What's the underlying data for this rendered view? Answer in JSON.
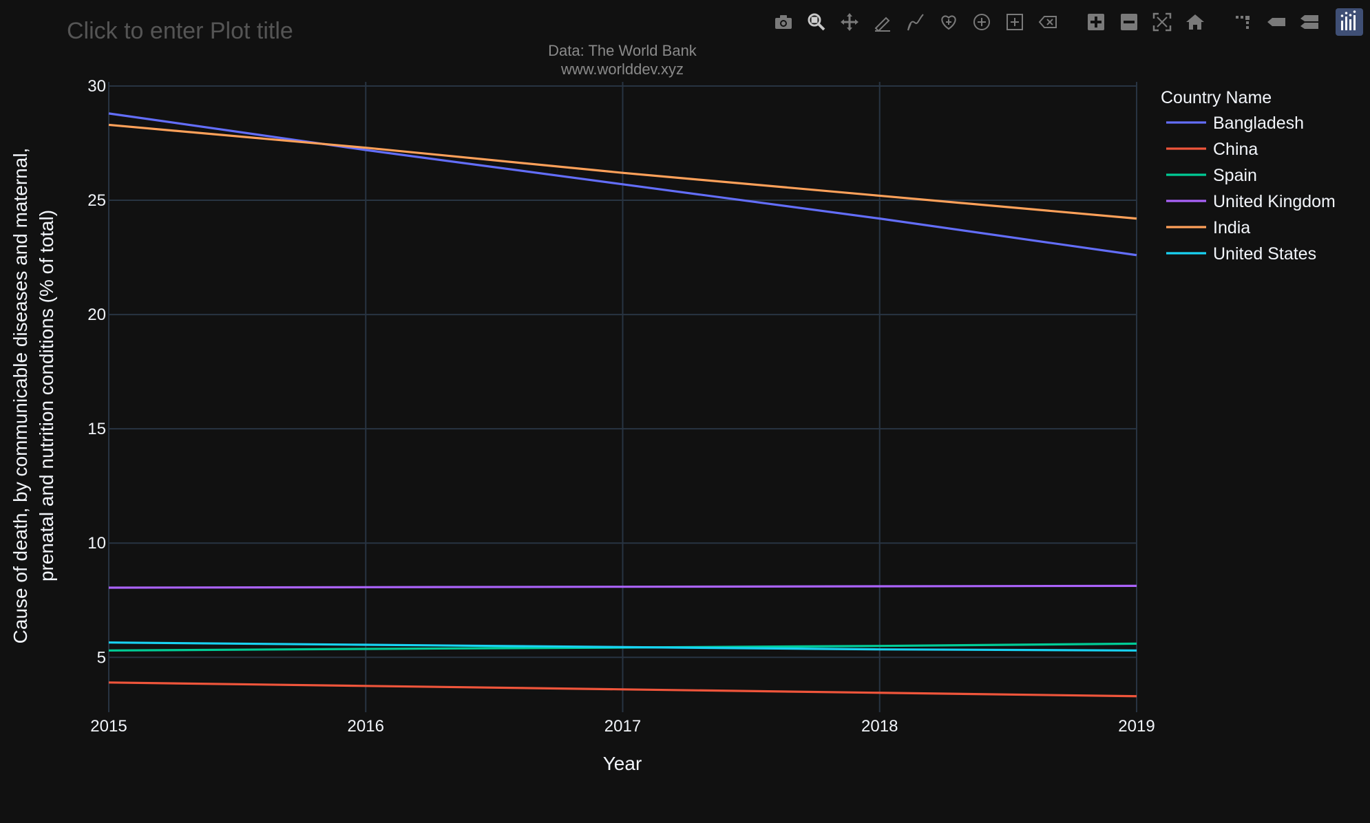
{
  "plot": {
    "title_placeholder": "Click to enter Plot title",
    "source_line1": "Data: The World Bank",
    "source_line2": "www.worlddev.xyz"
  },
  "modebar": {
    "buttons": [
      "camera-icon",
      "zoom-icon",
      "pan-icon",
      "lasso-select-icon",
      "draw-open-path-icon",
      "draw-closed-path-icon",
      "draw-circle-icon",
      "draw-rect-icon",
      "erase-shape-icon",
      "zoom-in-icon",
      "zoom-out-icon",
      "autoscale-icon",
      "reset-axes-icon",
      "spike-lines-icon",
      "hover-closest-icon",
      "hover-compare-icon",
      "plotly-logo-icon"
    ],
    "active": "zoom-icon"
  },
  "colors": {
    "background": "#111111",
    "grid": "#283442",
    "text": "#f2f5fa",
    "muted": "#8a8a8a"
  },
  "chart_data": {
    "type": "line",
    "xlabel": "Year",
    "ylabel_line1": "Cause of death, by communicable diseases and maternal,",
    "ylabel_line2": "prenatal and nutrition conditions (% of total)",
    "xlim": [
      2015,
      2019
    ],
    "ylim": [
      2.6,
      30
    ],
    "x_ticks": [
      2015,
      2016,
      2017,
      2018,
      2019
    ],
    "y_ticks": [
      5,
      10,
      15,
      20,
      25,
      30
    ],
    "x": [
      2015,
      2016,
      2017,
      2018,
      2019
    ],
    "grid": true,
    "legend_title": "Country Name",
    "legend_position": "top-right",
    "series": [
      {
        "name": "Bangladesh",
        "color": "#636efa",
        "values": [
          28.8,
          27.2,
          25.7,
          24.2,
          22.6
        ]
      },
      {
        "name": "China",
        "color": "#ef553b",
        "values": [
          3.9,
          3.75,
          3.6,
          3.45,
          3.3
        ]
      },
      {
        "name": "Spain",
        "color": "#00cc96",
        "values": [
          5.3,
          5.37,
          5.43,
          5.5,
          5.6
        ]
      },
      {
        "name": "United Kingdom",
        "color": "#ab63fa",
        "values": [
          8.05,
          8.07,
          8.09,
          8.11,
          8.13
        ]
      },
      {
        "name": "India",
        "color": "#ffa15a",
        "values": [
          28.3,
          27.3,
          26.2,
          25.2,
          24.2
        ]
      },
      {
        "name": "United States",
        "color": "#19d3f3",
        "values": [
          5.65,
          5.55,
          5.45,
          5.35,
          5.3
        ]
      }
    ]
  }
}
